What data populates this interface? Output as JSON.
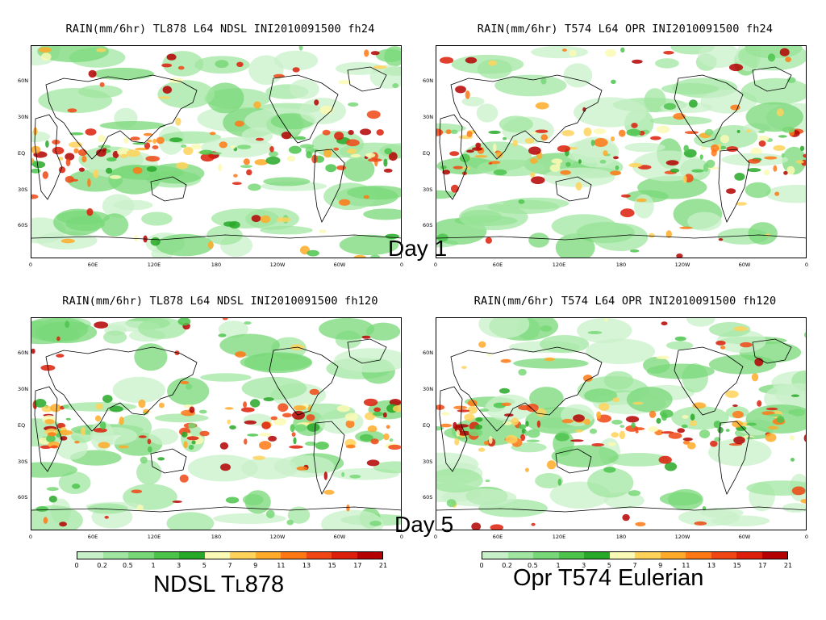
{
  "panels": [
    {
      "title": "RAIN(mm/6hr)  TL878  L64  NDSL  INI2010091500  fh24"
    },
    {
      "title": "RAIN(mm/6hr)  T574  L64  OPR  INI2010091500  fh24"
    },
    {
      "title": "RAIN(mm/6hr)  TL878  L64  NDSL  INI2010091500  fh120"
    },
    {
      "title": "RAIN(mm/6hr)  T574  L64  OPR  INI2010091500  fh120"
    }
  ],
  "lat_labels": [
    "60N",
    "30N",
    "EQ",
    "30S",
    "60S"
  ],
  "lon_labels": [
    "0",
    "60E",
    "120E",
    "180",
    "120W",
    "60W",
    "0"
  ],
  "day_labels": [
    "Day 1",
    "Day 5"
  ],
  "colorbar": {
    "labels": [
      "0",
      "0.2",
      "0.5",
      "1",
      "3",
      "5",
      "7",
      "9",
      "11",
      "13",
      "15",
      "17",
      "21"
    ],
    "colors": [
      "#c8f0c8",
      "#a0e6a0",
      "#78d878",
      "#4cc44c",
      "#28a828",
      "#fafab4",
      "#ffd25a",
      "#ffaa28",
      "#ff7814",
      "#f04614",
      "#dc1e0a",
      "#b40000"
    ]
  },
  "captions": {
    "left_prefix": "NDSL T",
    "left_small": "L",
    "left_suffix": "878",
    "right": "Opr T574 Eulerian"
  }
}
